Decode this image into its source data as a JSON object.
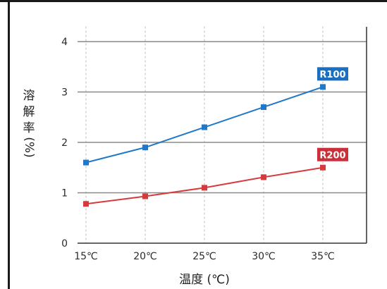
{
  "chart_data": {
    "type": "line",
    "title": "",
    "xlabel": "温度 (℃)",
    "ylabel_chars": [
      "溶",
      "解",
      "率",
      "(%)"
    ],
    "categories": [
      "15℃",
      "20℃",
      "25℃",
      "30℃",
      "35℃"
    ],
    "y_ticks": [
      "0",
      "1",
      "2",
      "3",
      "4"
    ],
    "ylim": [
      0,
      4.3
    ],
    "grid": {
      "horizontal": true,
      "vertical": true,
      "vertical_style": "dashed"
    },
    "legend": "inline-labels",
    "series": [
      {
        "name": "R100",
        "values": [
          1.6,
          1.9,
          2.3,
          2.7,
          3.1
        ],
        "color": "#1f78c8",
        "label_bg": "#1a6fc0"
      },
      {
        "name": "R200",
        "values": [
          0.78,
          0.93,
          1.1,
          1.31,
          1.5
        ],
        "color": "#d63a3a",
        "label_bg": "#c8303a"
      }
    ]
  },
  "colors": {
    "frame": "#1a1a1a",
    "grid_major": "#8a8a8a",
    "grid_vertical": "#bdbdbd",
    "axis": "#333333"
  }
}
